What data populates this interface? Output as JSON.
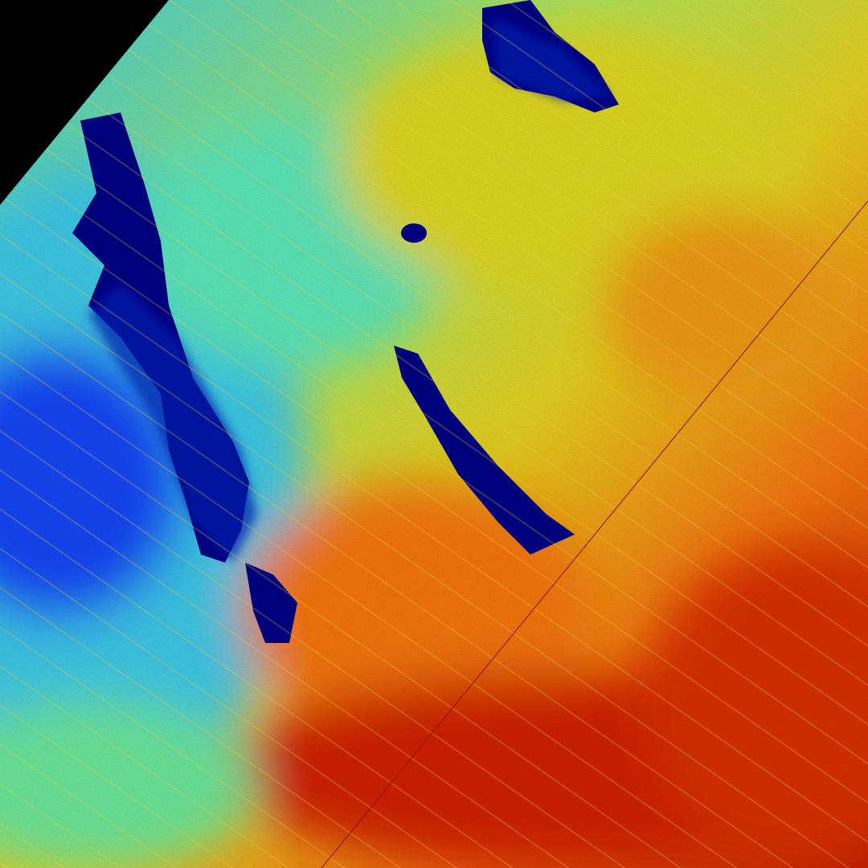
{
  "image": {
    "kind": "false-color satellite image, jet colormap",
    "colormap": [
      "#00007f",
      "#0000ff",
      "#00a0ff",
      "#40ffc0",
      "#c0ff40",
      "#ffe000",
      "#ff8000",
      "#e02000",
      "#a00000"
    ],
    "colors": {
      "nodata": "#000000",
      "water_dark": "#000080",
      "low": "#1040ff",
      "cyan": "#40e0e0",
      "yellow": "#e8e020",
      "orange": "#ff7010",
      "red": "#d82000"
    }
  }
}
